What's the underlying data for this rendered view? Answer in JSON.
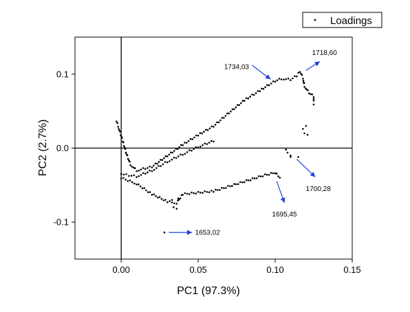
{
  "chart_data": {
    "type": "scatter",
    "xlabel": "PC1 (97.3%)",
    "ylabel": "PC2 (2.7%)",
    "xlim": [
      -0.03,
      0.15
    ],
    "ylim": [
      -0.15,
      0.15
    ],
    "x_ticks": [
      0.0,
      0.05,
      0.1,
      0.15
    ],
    "x_tick_labels": [
      "0.00",
      "0.05",
      "0.10",
      "0.15"
    ],
    "y_ticks": [
      -0.1,
      0.0,
      0.1
    ],
    "y_tick_labels": [
      "-0.1",
      "0.0",
      "0.1"
    ],
    "reference_lines": {
      "x": 0.0,
      "y": 0.0
    },
    "grid": false,
    "legend": {
      "position": "top-right",
      "entries": [
        "Loadings"
      ]
    },
    "marker_color": "#000000",
    "arrow_color": "#1f3fe0",
    "series": [
      {
        "name": "Loadings",
        "path_vertices": [
          [
            0.125,
            0.06
          ],
          [
            0.125,
            0.07
          ],
          [
            0.122,
            0.075
          ],
          [
            0.119,
            0.084
          ],
          [
            0.118,
            0.095
          ],
          [
            0.116,
            0.104
          ],
          [
            0.114,
            0.098
          ],
          [
            0.11,
            0.093
          ],
          [
            0.104,
            0.094
          ],
          [
            0.1,
            0.091
          ],
          [
            0.096,
            0.086
          ],
          [
            0.09,
            0.078
          ],
          [
            0.08,
            0.065
          ],
          [
            0.07,
            0.048
          ],
          [
            0.06,
            0.03
          ],
          [
            0.05,
            0.018
          ],
          [
            0.04,
            0.005
          ],
          [
            0.03,
            -0.01
          ],
          [
            0.02,
            -0.025
          ],
          [
            0.01,
            -0.03
          ],
          [
            0.006,
            -0.022
          ],
          [
            0.003,
            -0.005
          ],
          [
            0.001,
            0.01
          ],
          [
            -0.002,
            0.03
          ],
          [
            -0.003,
            0.036
          ]
        ],
        "path2_vertices": [
          [
            0.06,
            0.01
          ],
          [
            0.05,
            0.002
          ],
          [
            0.04,
            -0.008
          ],
          [
            0.03,
            -0.018
          ],
          [
            0.02,
            -0.03
          ],
          [
            0.01,
            -0.038
          ],
          [
            0.0,
            -0.035
          ]
        ],
        "path3_vertices": [
          [
            0.0,
            -0.04
          ],
          [
            0.01,
            -0.048
          ],
          [
            0.02,
            -0.062
          ],
          [
            0.03,
            -0.072
          ],
          [
            0.036,
            -0.074
          ],
          [
            0.04,
            -0.062
          ],
          [
            0.06,
            -0.058
          ],
          [
            0.08,
            -0.045
          ],
          [
            0.092,
            -0.037
          ],
          [
            0.1,
            -0.033
          ],
          [
            0.103,
            -0.04
          ]
        ],
        "extra_points": [
          [
            0.119,
            0.02
          ],
          [
            0.12,
            0.03
          ],
          [
            0.118,
            0.026
          ],
          [
            0.121,
            0.018
          ],
          [
            0.107,
            -0.002
          ],
          [
            0.108,
            -0.006
          ],
          [
            0.11,
            -0.01
          ],
          [
            0.11,
            -0.012
          ],
          [
            0.115,
            -0.012
          ],
          [
            0.028,
            -0.114
          ],
          [
            0.034,
            -0.08
          ],
          [
            0.036,
            -0.082
          ],
          [
            0.033,
            -0.07
          ],
          [
            0.037,
            -0.068
          ]
        ]
      }
    ],
    "annotations": [
      {
        "text": "1734,03",
        "arrow_from": [
          0.085,
          0.112
        ],
        "arrow_to": [
          0.097,
          0.093
        ],
        "label_at": [
          0.083,
          0.11
        ],
        "label_anchor": "end"
      },
      {
        "text": "1718,60",
        "arrow_from": [
          0.12,
          0.105
        ],
        "arrow_to": [
          0.129,
          0.117
        ],
        "label_at": [
          0.132,
          0.129
        ],
        "label_anchor": "middle"
      },
      {
        "text": "1700,28",
        "arrow_from": [
          0.114,
          -0.015
        ],
        "arrow_to": [
          0.126,
          -0.039
        ],
        "label_at": [
          0.128,
          -0.055
        ],
        "label_anchor": "middle"
      },
      {
        "text": "1695,45",
        "arrow_from": [
          0.101,
          -0.045
        ],
        "arrow_to": [
          0.106,
          -0.074
        ],
        "label_at": [
          0.106,
          -0.089
        ],
        "label_anchor": "middle"
      },
      {
        "text": "1653,02",
        "arrow_from": [
          0.031,
          -0.114
        ],
        "arrow_to": [
          0.046,
          -0.114
        ],
        "label_at": [
          0.048,
          -0.114
        ],
        "label_anchor": "start"
      }
    ]
  }
}
